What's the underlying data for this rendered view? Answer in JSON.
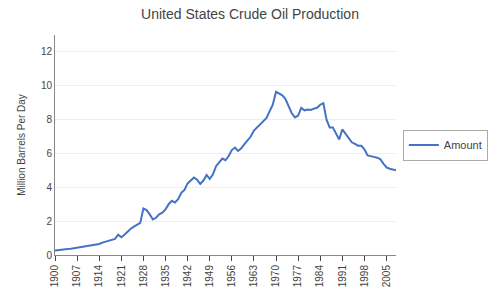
{
  "chart_data": {
    "type": "line",
    "title": "United States Crude Oil Production",
    "ylabel": "Million Barrels Per Day",
    "x": [
      1900,
      1901,
      1902,
      1903,
      1904,
      1905,
      1906,
      1907,
      1908,
      1909,
      1910,
      1911,
      1912,
      1913,
      1914,
      1915,
      1916,
      1917,
      1918,
      1919,
      1920,
      1921,
      1922,
      1923,
      1924,
      1925,
      1926,
      1927,
      1928,
      1929,
      1930,
      1931,
      1932,
      1933,
      1934,
      1935,
      1936,
      1937,
      1938,
      1939,
      1940,
      1941,
      1942,
      1943,
      1944,
      1945,
      1946,
      1947,
      1948,
      1949,
      1950,
      1951,
      1952,
      1953,
      1954,
      1955,
      1956,
      1957,
      1958,
      1959,
      1960,
      1961,
      1962,
      1963,
      1964,
      1965,
      1966,
      1967,
      1968,
      1969,
      1970,
      1971,
      1972,
      1973,
      1974,
      1975,
      1976,
      1977,
      1978,
      1979,
      1980,
      1981,
      1982,
      1983,
      1984,
      1985,
      1986,
      1987,
      1988,
      1989,
      1990,
      1991,
      1992,
      1993,
      1994,
      1995,
      1996,
      1997,
      1998,
      1999,
      2000,
      2001,
      2002,
      2003,
      2004,
      2005,
      2006,
      2007,
      2008
    ],
    "series": [
      {
        "name": "Amount",
        "color": "#4472C4",
        "values": [
          0.27,
          0.3,
          0.32,
          0.34,
          0.36,
          0.37,
          0.4,
          0.42,
          0.44,
          0.46,
          0.5,
          0.55,
          0.58,
          0.62,
          0.65,
          0.73,
          0.79,
          0.84,
          0.9,
          0.95,
          1.2,
          1.05,
          1.2,
          1.4,
          1.55,
          1.68,
          1.8,
          1.9,
          2.75,
          2.65,
          2.4,
          2.1,
          2.2,
          2.4,
          2.5,
          2.7,
          3.0,
          3.2,
          3.1,
          3.3,
          3.67,
          3.85,
          4.23,
          4.38,
          4.58,
          4.45,
          4.2,
          4.4,
          4.73,
          4.5,
          4.75,
          5.25,
          5.5,
          5.7,
          5.6,
          5.85,
          6.2,
          6.35,
          6.15,
          6.3,
          6.55,
          6.75,
          7.0,
          7.35,
          7.55,
          7.7,
          7.9,
          8.1,
          8.5,
          8.9,
          9.64,
          9.55,
          9.44,
          9.21,
          8.77,
          8.37,
          8.13,
          8.24,
          8.7,
          8.55,
          8.6,
          8.57,
          8.65,
          8.7,
          8.88,
          8.97,
          8.0,
          7.54,
          7.54,
          7.19,
          6.83,
          7.42,
          7.17,
          6.85,
          6.66,
          6.56,
          6.46,
          6.45,
          6.25,
          5.88,
          5.82,
          5.8,
          5.75,
          5.67,
          5.4,
          5.18,
          5.1,
          5.07,
          5.0
        ]
      }
    ],
    "xlim": [
      1900,
      2008
    ],
    "xticks": [
      1900,
      1907,
      1914,
      1921,
      1928,
      1935,
      1942,
      1949,
      1956,
      1963,
      1970,
      1977,
      1984,
      1991,
      1998,
      2005
    ],
    "ylim": [
      0,
      13
    ],
    "yticks": [
      0,
      2,
      4,
      6,
      8,
      10,
      12
    ],
    "grid": "y",
    "legend": "right"
  }
}
